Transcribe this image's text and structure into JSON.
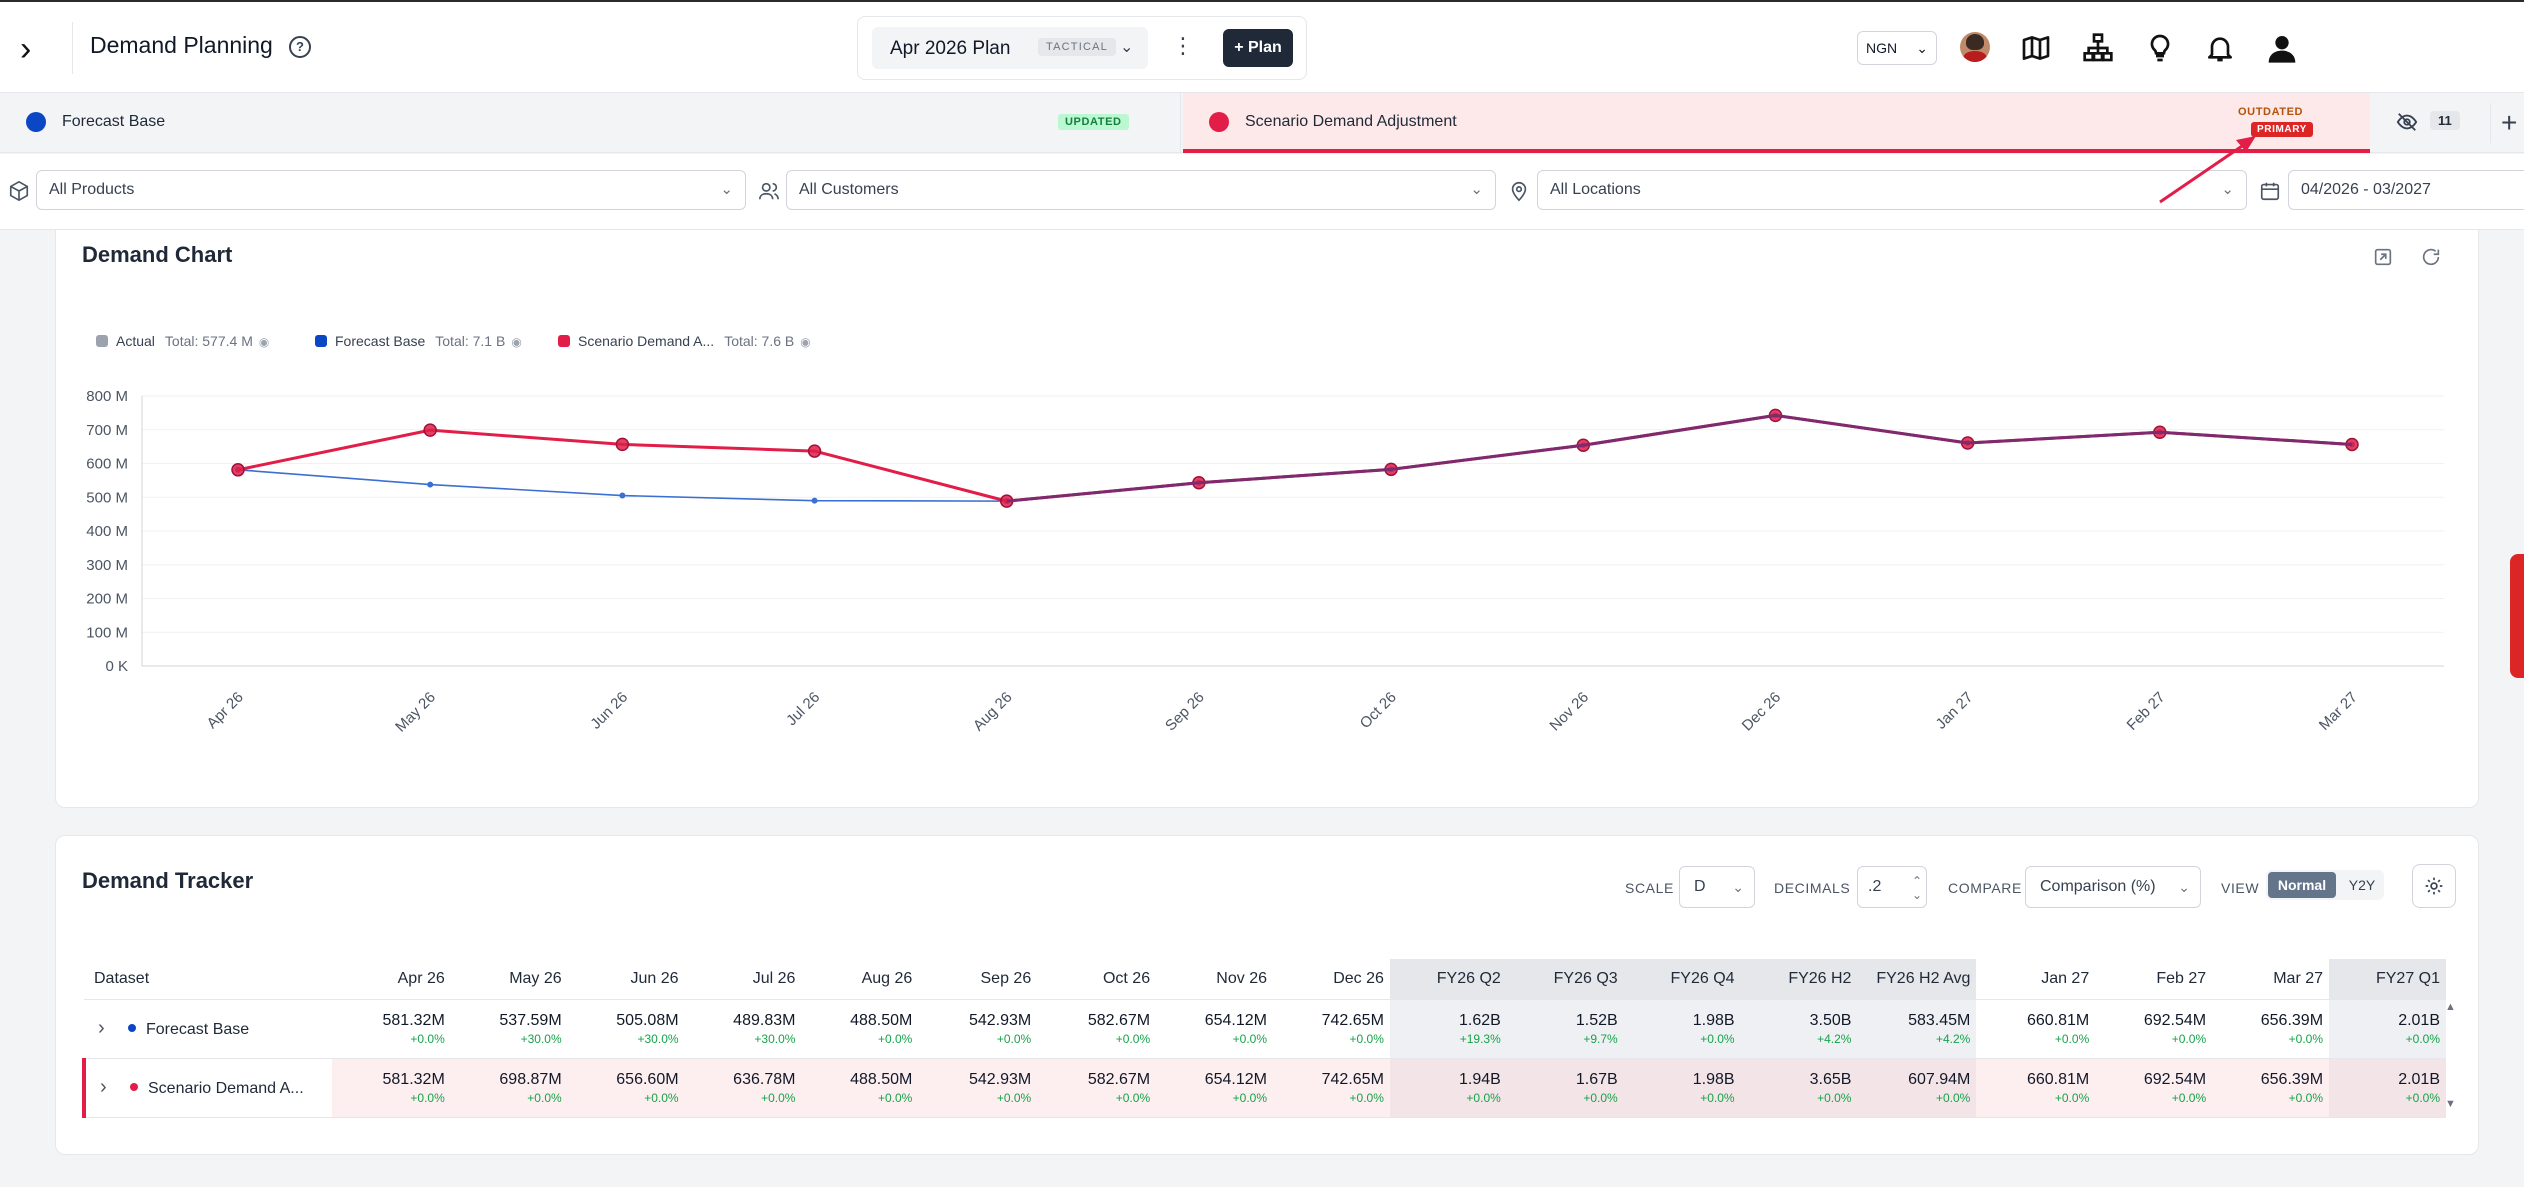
{
  "header": {
    "title": "Demand Planning",
    "plan_name": "Apr 2026 Plan",
    "plan_tag": "TACTICAL",
    "add_plan_label": "+ Plan",
    "currency": "NGN"
  },
  "tabs": [
    {
      "label": "Forecast Base",
      "badge": "UPDATED",
      "color": "#0b47c4"
    },
    {
      "label": "Scenario Demand Adjustment",
      "badge_top": "OUTDATED",
      "badge_bottom": "PRIMARY",
      "color": "#e11d48"
    }
  ],
  "hidden_count": "11",
  "filters": {
    "products": "All Products",
    "customers": "All Customers",
    "locations": "All Locations",
    "date_range": "04/2026 - 03/2027"
  },
  "chart": {
    "title": "Demand Chart",
    "legend": [
      {
        "name": "Actual",
        "total": "Total: 577.4 M",
        "color": "#9ca3af"
      },
      {
        "name": "Forecast Base",
        "total": "Total: 7.1 B",
        "color": "#0b47c4"
      },
      {
        "name": "Scenario Demand A...",
        "total": "Total: 7.6 B",
        "color": "#e11d48"
      }
    ]
  },
  "chart_data": {
    "type": "line",
    "categories": [
      "Apr 26",
      "May 26",
      "Jun 26",
      "Jul 26",
      "Aug 26",
      "Sep 26",
      "Oct 26",
      "Nov 26",
      "Dec 26",
      "Jan 27",
      "Feb 27",
      "Mar 27"
    ],
    "yticks": [
      "0 K",
      "100 M",
      "200 M",
      "300 M",
      "400 M",
      "500 M",
      "600 M",
      "700 M",
      "800 M"
    ],
    "ylim": [
      0,
      800
    ],
    "grid": true,
    "legend": "top-left",
    "series": [
      {
        "name": "Forecast Base",
        "color": "#3b6fd1",
        "values": [
          581.32,
          537.59,
          505.08,
          489.83,
          488.5,
          542.93,
          582.67,
          654.12,
          742.65,
          660.81,
          692.54,
          656.39
        ]
      },
      {
        "name": "Scenario Demand A...",
        "color": "#e11d48",
        "values": [
          581.32,
          698.87,
          656.6,
          636.78,
          488.5,
          542.93,
          582.67,
          654.12,
          742.65,
          660.81,
          692.54,
          656.39
        ]
      }
    ]
  },
  "tracker": {
    "title": "Demand Tracker",
    "scale_label": "SCALE",
    "scale_value": "D",
    "decimals_label": "DECIMALS",
    "decimals_value": ".2",
    "compare_label": "COMPARE",
    "compare_value": "Comparison (%)",
    "view_label": "VIEW",
    "view_normal": "Normal",
    "view_y2y": "Y2Y",
    "dataset_header": "Dataset",
    "columns": [
      "Apr 26",
      "May 26",
      "Jun 26",
      "Jul 26",
      "Aug 26",
      "Sep 26",
      "Oct 26",
      "Nov 26",
      "Dec 26",
      "FY26 Q2",
      "FY26 Q3",
      "FY26 Q4",
      "FY26 H2",
      "FY26 H2 Avg",
      "Jan 27",
      "Feb 27",
      "Mar 27",
      "FY27 Q1"
    ],
    "rows": [
      {
        "name": "Forecast Base",
        "values": [
          "581.32M",
          "537.59M",
          "505.08M",
          "489.83M",
          "488.50M",
          "542.93M",
          "582.67M",
          "654.12M",
          "742.65M",
          "1.62B",
          "1.52B",
          "1.98B",
          "3.50B",
          "583.45M",
          "660.81M",
          "692.54M",
          "656.39M",
          "2.01B"
        ],
        "deltas": [
          "+0.0%",
          "+30.0%",
          "+30.0%",
          "+30.0%",
          "+0.0%",
          "+0.0%",
          "+0.0%",
          "+0.0%",
          "+0.0%",
          "+19.3%",
          "+9.7%",
          "+0.0%",
          "+4.2%",
          "+4.2%",
          "+0.0%",
          "+0.0%",
          "+0.0%",
          "+0.0%"
        ]
      },
      {
        "name": "Scenario Demand A...",
        "values": [
          "581.32M",
          "698.87M",
          "656.60M",
          "636.78M",
          "488.50M",
          "542.93M",
          "582.67M",
          "654.12M",
          "742.65M",
          "1.94B",
          "1.67B",
          "1.98B",
          "3.65B",
          "607.94M",
          "660.81M",
          "692.54M",
          "656.39M",
          "2.01B"
        ],
        "deltas": [
          "+0.0%",
          "+0.0%",
          "+0.0%",
          "+0.0%",
          "+0.0%",
          "+0.0%",
          "+0.0%",
          "+0.0%",
          "+0.0%",
          "+0.0%",
          "+0.0%",
          "+0.0%",
          "+0.0%",
          "+0.0%",
          "+0.0%",
          "+0.0%",
          "+0.0%",
          "+0.0%"
        ]
      }
    ]
  }
}
